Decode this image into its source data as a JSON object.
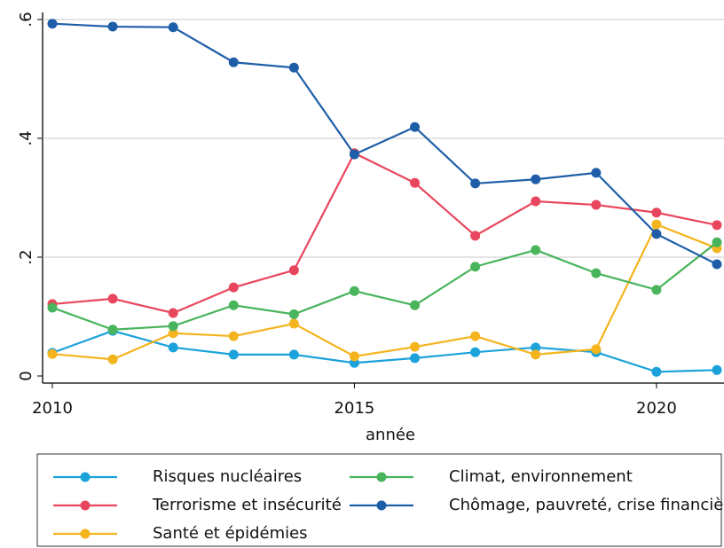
{
  "chart_data": {
    "type": "line",
    "x_label": "année",
    "x": [
      2010,
      2011,
      2012,
      2013,
      2014,
      2015,
      2016,
      2017,
      2018,
      2019,
      2020,
      2021
    ],
    "xlim": [
      2010,
      2021
    ],
    "xticks": [
      2010,
      2015,
      2020
    ],
    "ylim": [
      0,
      0.6
    ],
    "yticks": [
      {
        "value": 0,
        "label": "0"
      },
      {
        "value": 0.2,
        "label": ".2"
      },
      {
        "value": 0.4,
        "label": ".4"
      },
      {
        "value": 0.6,
        "label": ".6"
      }
    ],
    "grid": true,
    "legend": "bottom",
    "series": [
      {
        "name": "Risques nucléaires",
        "color": "#1ba2db",
        "values": [
          0.039,
          0.076,
          0.048,
          0.036,
          0.036,
          0.022,
          0.03,
          0.04,
          0.048,
          0.04,
          0.007,
          0.01
        ]
      },
      {
        "name": "Terrorisme et insécurité",
        "color": "#e8465d",
        "values": [
          0.121,
          0.13,
          0.106,
          0.149,
          0.178,
          0.375,
          0.325,
          0.236,
          0.294,
          0.288,
          0.275,
          0.254
        ]
      },
      {
        "name": "Santé et épidémies",
        "color": "#f4b41d",
        "values": [
          0.037,
          0.028,
          0.072,
          0.067,
          0.088,
          0.033,
          0.049,
          0.067,
          0.036,
          0.045,
          0.255,
          0.215
        ]
      },
      {
        "name": "Climat, environnement",
        "color": "#48b45b",
        "values": [
          0.115,
          0.078,
          0.084,
          0.119,
          0.104,
          0.143,
          0.119,
          0.184,
          0.212,
          0.173,
          0.145,
          0.225
        ]
      },
      {
        "name": "Chômage, pauvreté, crise financière",
        "color": "#1e5ea8",
        "values": [
          0.593,
          0.588,
          0.587,
          0.528,
          0.519,
          0.373,
          0.419,
          0.324,
          0.331,
          0.342,
          0.239,
          0.188
        ]
      }
    ]
  }
}
